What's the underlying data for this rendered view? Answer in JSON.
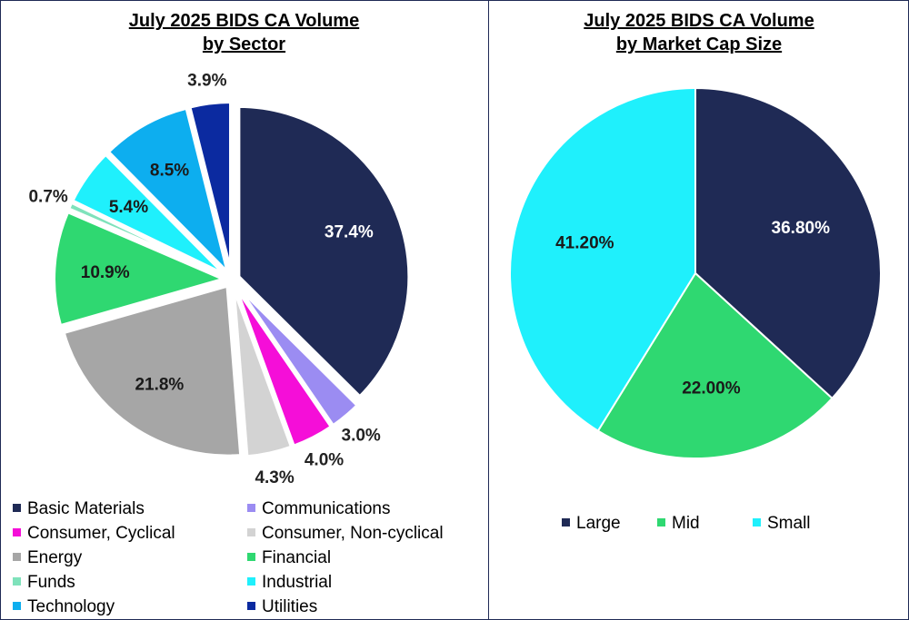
{
  "chart_data": [
    {
      "type": "pie",
      "title": "July 2025 BIDS CA Volume by Sector",
      "title_lines": [
        "July 2025 BIDS CA Volume",
        "by Sector"
      ],
      "legend_position": "bottom",
      "slices": [
        {
          "name": "Basic Materials",
          "value": 37.4,
          "label": "37.4%",
          "color": "#1f2a55"
        },
        {
          "name": "Communications",
          "value": 3.0,
          "label": "3.0%",
          "color": "#9b8cf2"
        },
        {
          "name": "Consumer, Cyclical",
          "value": 4.0,
          "label": "4.0%",
          "color": "#f50ed8"
        },
        {
          "name": "Consumer, Non-cyclical",
          "value": 4.3,
          "label": "4.3%",
          "color": "#d3d3d3"
        },
        {
          "name": "Energy",
          "value": 21.8,
          "label": "21.8%",
          "color": "#a6a6a6"
        },
        {
          "name": "Financial",
          "value": 10.9,
          "label": "10.9%",
          "color": "#2fd871"
        },
        {
          "name": "Funds",
          "value": 0.7,
          "label": "0.7%",
          "color": "#7fe2bb"
        },
        {
          "name": "Industrial",
          "value": 5.4,
          "label": "5.4%",
          "color": "#1ff0fc"
        },
        {
          "name": "Technology",
          "value": 8.5,
          "label": "8.5%",
          "color": "#0daeef"
        },
        {
          "name": "Utilities",
          "value": 3.9,
          "label": "3.9%",
          "color": "#0b2aa0"
        }
      ]
    },
    {
      "type": "pie",
      "title": "July 2025 BIDS CA Volume by Market Cap Size",
      "title_lines": [
        "July 2025 BIDS CA Volume",
        "by Market Cap Size"
      ],
      "legend_position": "bottom",
      "slices": [
        {
          "name": "Large",
          "value": 36.8,
          "label": "36.80%",
          "color": "#1f2a55"
        },
        {
          "name": "Mid",
          "value": 22.0,
          "label": "22.00%",
          "color": "#2fd871"
        },
        {
          "name": "Small",
          "value": 41.2,
          "label": "41.20%",
          "color": "#1ff0fc"
        }
      ]
    }
  ]
}
